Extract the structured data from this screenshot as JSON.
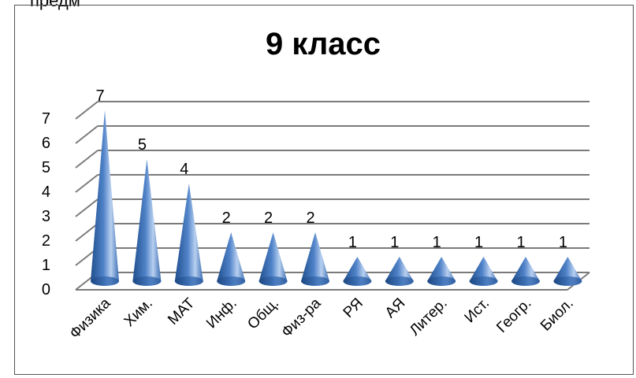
{
  "page_fragment": "предм",
  "chart_data": {
    "type": "bar",
    "style": "3d-cone",
    "title": "9 класс",
    "categories": [
      "Физика",
      "Хим.",
      "МАТ",
      "Инф.",
      "Общ.",
      "Физ-ра",
      "РЯ",
      "АЯ",
      "Литер.",
      "Ист.",
      "Геогр.",
      "Биол."
    ],
    "values": [
      7,
      5,
      4,
      2,
      2,
      2,
      1,
      1,
      1,
      1,
      1,
      1
    ],
    "y_ticks": [
      "0",
      "1",
      "2",
      "3",
      "4",
      "5",
      "6",
      "7"
    ],
    "ylim": [
      0,
      7
    ],
    "xlabel": "",
    "ylabel": "",
    "grid": true,
    "data_labels": true,
    "legend": "none",
    "colors": {
      "cone_dark": "#1f4e8c",
      "cone_light": "#b8d0f0",
      "gridline": "#7a7a7a"
    }
  }
}
